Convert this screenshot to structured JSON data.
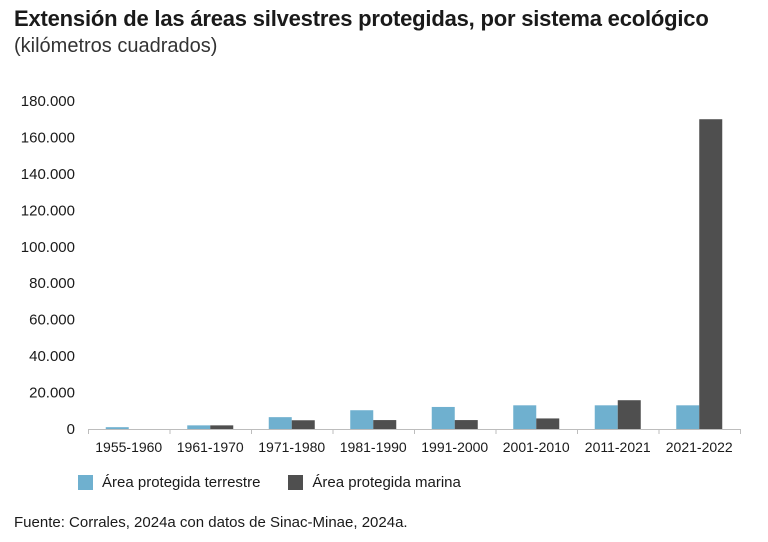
{
  "title": "Extensión de las áreas silvestres protegidas, por sistema ecológico",
  "subtitle": "(kilómetros cuadrados)",
  "source": "Fuente: Corrales, 2024a con datos de Sinac-Minae, 2024a.",
  "colors": {
    "terrestre": "#6fb0cf",
    "marina": "#4f4f4f"
  },
  "chart_data": {
    "type": "bar",
    "categories": [
      "1955-1960",
      "1961-1970",
      "1971-1980",
      "1981-1990",
      "1991-2000",
      "2001-2010",
      "2011-2021",
      "2021-2022"
    ],
    "series": [
      {
        "name": "Área protegida terrestre",
        "values": [
          1000,
          2000,
          6500,
          10300,
          12100,
          13000,
          13000,
          13000
        ]
      },
      {
        "name": "Área protegida marina",
        "values": [
          0,
          2000,
          4800,
          4900,
          4900,
          5800,
          15800,
          170000
        ]
      }
    ],
    "ylim": [
      0,
      180000
    ],
    "yticks": [
      0,
      20000,
      40000,
      60000,
      80000,
      100000,
      120000,
      140000,
      160000,
      180000
    ],
    "ytick_labels": [
      "0",
      "20.000",
      "40.000",
      "60.000",
      "80.000",
      "100.000",
      "120.000",
      "140.000",
      "160.000",
      "180.000"
    ],
    "legend_position": "bottom-left",
    "grid": false
  }
}
